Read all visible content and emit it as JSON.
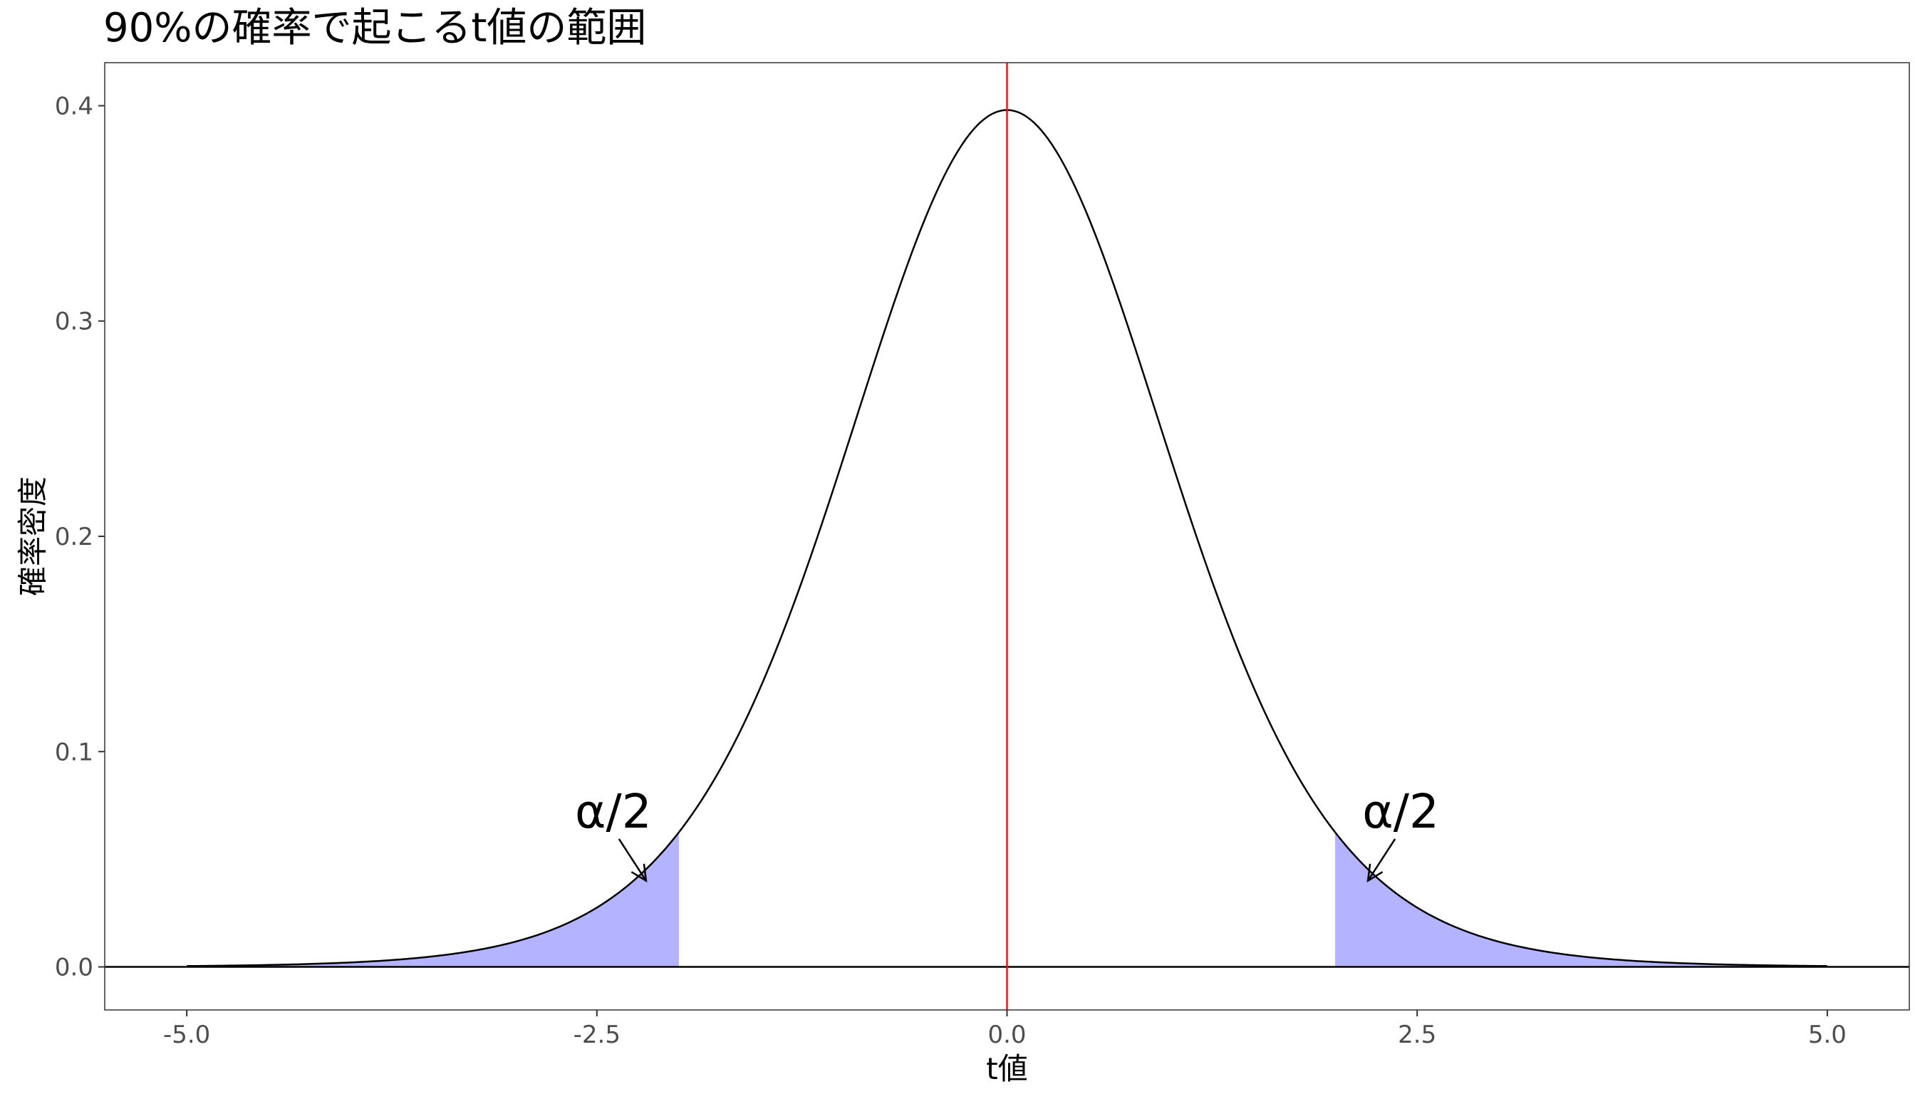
{
  "chart_data": {
    "type": "area",
    "title": "90%の確率で起こるt値の範囲",
    "xlabel": "t値",
    "ylabel": "確率密度",
    "xlim": [
      -5.5,
      5.5
    ],
    "ylim": [
      -0.02,
      0.42
    ],
    "x_ticks": [
      -5.0,
      -2.5,
      0.0,
      2.5,
      5.0
    ],
    "x_tick_labels": [
      "-5.0",
      "-2.5",
      "0.0",
      "2.5",
      "5.0"
    ],
    "y_ticks": [
      0.0,
      0.1,
      0.2,
      0.3,
      0.4
    ],
    "y_tick_labels": [
      "0.0",
      "0.1",
      "0.2",
      "0.3",
      "0.4"
    ],
    "grid": false,
    "curve": {
      "distribution": "t",
      "x_range": [
        -5.0,
        5.0
      ],
      "peak_density": 0.398,
      "color": "#000000"
    },
    "shaded_regions": [
      {
        "x_range": [
          -5.0,
          -2.0
        ],
        "color": "#b3b3ff"
      },
      {
        "x_range": [
          2.0,
          5.0
        ],
        "color": "#b3b3ff"
      }
    ],
    "reference_lines": [
      {
        "orientation": "vertical",
        "x": 0.0,
        "color": "#e31a1c"
      },
      {
        "orientation": "horizontal",
        "y": 0.0,
        "color": "#000000"
      }
    ],
    "annotations": [
      {
        "text": "α/2",
        "label_at": [
          -2.4,
          0.072
        ],
        "arrow_to": [
          -2.2,
          0.04
        ]
      },
      {
        "text": "α/2",
        "label_at": [
          2.4,
          0.072
        ],
        "arrow_to": [
          2.2,
          0.04
        ]
      }
    ]
  }
}
